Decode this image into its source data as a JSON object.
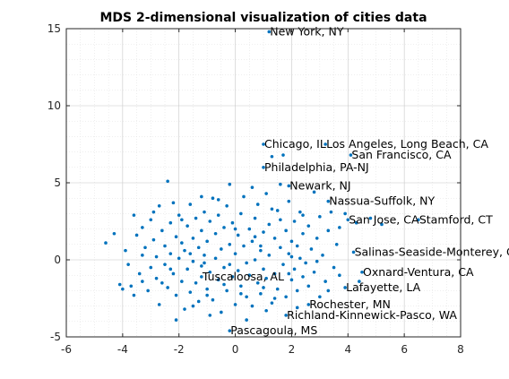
{
  "chart_data": {
    "type": "scatter",
    "title": "MDS 2-dimensional visualization of cities data",
    "xlabel": "",
    "ylabel": "",
    "xlim": [
      -6,
      8
    ],
    "ylim": [
      -5,
      15
    ],
    "xticks": [
      -6,
      -4,
      -2,
      0,
      2,
      4,
      6,
      8
    ],
    "yticks": [
      -5,
      0,
      5,
      10,
      15
    ],
    "xtick_labels": [
      "-6",
      "-4",
      "-2",
      "0",
      "2",
      "4",
      "6",
      "8"
    ],
    "ytick_labels": [
      "-5",
      "0",
      "5",
      "10",
      "15"
    ],
    "grid": true,
    "minor_grid": true,
    "point_color": "#0072BD",
    "labeled_points": [
      {
        "label": "New York, NY",
        "x": 1.2,
        "y": 14.8
      },
      {
        "label": "Chicago, IL",
        "x": 1.0,
        "y": 7.5
      },
      {
        "label": "Los Angeles, Long Beach, CA",
        "x": 3.2,
        "y": 7.5
      },
      {
        "label": "San Francisco, CA",
        "x": 4.1,
        "y": 6.8
      },
      {
        "label": "Philadelphia, PA-NJ",
        "x": 1.0,
        "y": 6.0
      },
      {
        "label": "Newark, NJ",
        "x": 1.9,
        "y": 4.8
      },
      {
        "label": "Nassua-Suffolk, NY",
        "x": 3.3,
        "y": 3.8
      },
      {
        "label": "San Jose, CA",
        "x": 4.0,
        "y": 2.6
      },
      {
        "label": "Stamford, CT",
        "x": 6.5,
        "y": 2.6
      },
      {
        "label": "Salinas-Seaside-Monterey, CA",
        "x": 4.2,
        "y": 0.5
      },
      {
        "label": "Oxnard-Ventura, CA",
        "x": 4.5,
        "y": -0.8
      },
      {
        "label": "Tuscaloosa, AL",
        "x": -1.2,
        "y": -1.1
      },
      {
        "label": "Lafayette, LA",
        "x": 3.9,
        "y": -1.8
      },
      {
        "label": "Rochester, MN",
        "x": 2.6,
        "y": -2.9
      },
      {
        "label": "Richland-Kinnewick-Pasco, WA",
        "x": 1.8,
        "y": -3.6
      },
      {
        "label": "Pascagoula, MS",
        "x": -0.2,
        "y": -4.6
      }
    ],
    "points": [
      {
        "x": -4.6,
        "y": 1.1
      },
      {
        "x": -4.3,
        "y": 1.7
      },
      {
        "x": -4.1,
        "y": -1.6
      },
      {
        "x": -4.0,
        "y": -1.9
      },
      {
        "x": -3.9,
        "y": 0.6
      },
      {
        "x": -3.8,
        "y": -0.3
      },
      {
        "x": -3.7,
        "y": -1.7
      },
      {
        "x": -3.6,
        "y": 2.9
      },
      {
        "x": -3.5,
        "y": 1.6
      },
      {
        "x": -3.4,
        "y": -0.9
      },
      {
        "x": -3.3,
        "y": 2.1
      },
      {
        "x": -3.3,
        "y": -1.4
      },
      {
        "x": -3.2,
        "y": 0.8
      },
      {
        "x": -3.1,
        "y": -2.0
      },
      {
        "x": -3.0,
        "y": 2.6
      },
      {
        "x": -3.0,
        "y": -0.5
      },
      {
        "x": -2.9,
        "y": 1.3
      },
      {
        "x": -2.8,
        "y": 0.2
      },
      {
        "x": -2.8,
        "y": -1.2
      },
      {
        "x": -2.7,
        "y": 3.5
      },
      {
        "x": -2.7,
        "y": -2.9
      },
      {
        "x": -2.6,
        "y": 1.9
      },
      {
        "x": -2.5,
        "y": -0.3
      },
      {
        "x": -2.5,
        "y": 0.9
      },
      {
        "x": -2.4,
        "y": 5.1
      },
      {
        "x": -2.4,
        "y": -1.8
      },
      {
        "x": -2.3,
        "y": 2.4
      },
      {
        "x": -2.3,
        "y": 0.4
      },
      {
        "x": -2.2,
        "y": -0.9
      },
      {
        "x": -2.2,
        "y": 3.7
      },
      {
        "x": -2.1,
        "y": 1.5
      },
      {
        "x": -2.1,
        "y": -2.3
      },
      {
        "x": -2.0,
        "y": 0.1
      },
      {
        "x": -2.0,
        "y": 2.9
      },
      {
        "x": -1.9,
        "y": -1.4
      },
      {
        "x": -1.9,
        "y": 1.1
      },
      {
        "x": -1.8,
        "y": -3.2
      },
      {
        "x": -1.8,
        "y": 0.6
      },
      {
        "x": -1.7,
        "y": 2.2
      },
      {
        "x": -1.7,
        "y": -0.6
      },
      {
        "x": -1.6,
        "y": 3.6
      },
      {
        "x": -1.6,
        "y": -2.1
      },
      {
        "x": -1.5,
        "y": 1.4
      },
      {
        "x": -1.5,
        "y": -0.1
      },
      {
        "x": -1.4,
        "y": 2.7
      },
      {
        "x": -1.4,
        "y": -1.5
      },
      {
        "x": -1.3,
        "y": 0.8
      },
      {
        "x": -1.3,
        "y": -2.7
      },
      {
        "x": -1.2,
        "y": 1.9
      },
      {
        "x": -1.2,
        "y": -0.4
      },
      {
        "x": -1.1,
        "y": 3.1
      },
      {
        "x": -1.1,
        "y": 0.3
      },
      {
        "x": -1.0,
        "y": -1.9
      },
      {
        "x": -1.0,
        "y": 1.2
      },
      {
        "x": -0.9,
        "y": 2.5
      },
      {
        "x": -0.9,
        "y": -0.8
      },
      {
        "x": -0.8,
        "y": 4.0
      },
      {
        "x": -0.8,
        "y": -2.6
      },
      {
        "x": -0.7,
        "y": 1.7
      },
      {
        "x": -0.7,
        "y": 0.1
      },
      {
        "x": -0.6,
        "y": -1.3
      },
      {
        "x": -0.6,
        "y": 2.9
      },
      {
        "x": -0.5,
        "y": 0.7
      },
      {
        "x": -0.5,
        "y": -3.4
      },
      {
        "x": -0.4,
        "y": 2.1
      },
      {
        "x": -0.4,
        "y": -0.5
      },
      {
        "x": -0.3,
        "y": 3.5
      },
      {
        "x": -0.3,
        "y": -2.0
      },
      {
        "x": -0.2,
        "y": 1.0
      },
      {
        "x": -0.2,
        "y": 4.9
      },
      {
        "x": -0.1,
        "y": -1.1
      },
      {
        "x": -0.1,
        "y": 2.4
      },
      {
        "x": 0.0,
        "y": 0.4
      },
      {
        "x": 0.0,
        "y": -2.9
      },
      {
        "x": 0.1,
        "y": 1.6
      },
      {
        "x": 0.1,
        "y": -0.7
      },
      {
        "x": 0.2,
        "y": 3.0
      },
      {
        "x": 0.2,
        "y": -1.7
      },
      {
        "x": 0.3,
        "y": 0.9
      },
      {
        "x": 0.3,
        "y": 4.1
      },
      {
        "x": 0.4,
        "y": -0.2
      },
      {
        "x": 0.4,
        "y": -2.4
      },
      {
        "x": 0.5,
        "y": 2.0
      },
      {
        "x": 0.5,
        "y": -1.0
      },
      {
        "x": 0.6,
        "y": 1.2
      },
      {
        "x": 0.6,
        "y": -3.0
      },
      {
        "x": 0.7,
        "y": 2.7
      },
      {
        "x": 0.7,
        "y": 0.0
      },
      {
        "x": 0.8,
        "y": -1.5
      },
      {
        "x": 0.8,
        "y": 3.6
      },
      {
        "x": 0.9,
        "y": 0.6
      },
      {
        "x": 0.9,
        "y": -2.2
      },
      {
        "x": 1.0,
        "y": 1.8
      },
      {
        "x": 1.0,
        "y": -0.6
      },
      {
        "x": 1.1,
        "y": 4.3
      },
      {
        "x": 1.1,
        "y": -1.2
      },
      {
        "x": 1.2,
        "y": 2.3
      },
      {
        "x": 1.2,
        "y": 0.3
      },
      {
        "x": 1.3,
        "y": -2.8
      },
      {
        "x": 1.3,
        "y": 6.7
      },
      {
        "x": 1.4,
        "y": 1.4
      },
      {
        "x": 1.4,
        "y": -0.9
      },
      {
        "x": 1.5,
        "y": 3.2
      },
      {
        "x": 1.5,
        "y": -1.9
      },
      {
        "x": 1.6,
        "y": 0.8
      },
      {
        "x": 1.6,
        "y": 2.6
      },
      {
        "x": 1.7,
        "y": -0.3
      },
      {
        "x": 1.7,
        "y": 6.8
      },
      {
        "x": 1.8,
        "y": 1.9
      },
      {
        "x": 1.8,
        "y": -2.4
      },
      {
        "x": 1.9,
        "y": 0.4
      },
      {
        "x": 1.9,
        "y": 3.8
      },
      {
        "x": 2.0,
        "y": -1.3
      },
      {
        "x": 2.0,
        "y": 1.2
      },
      {
        "x": 2.1,
        "y": 2.5
      },
      {
        "x": 2.1,
        "y": -0.6
      },
      {
        "x": 2.2,
        "y": 0.9
      },
      {
        "x": 2.2,
        "y": -2.0
      },
      {
        "x": 2.3,
        "y": 3.1
      },
      {
        "x": 2.3,
        "y": 0.1
      },
      {
        "x": 2.4,
        "y": -1.1
      },
      {
        "x": 2.4,
        "y": 1.7
      },
      {
        "x": 2.5,
        "y": -0.2
      },
      {
        "x": 2.6,
        "y": 2.2
      },
      {
        "x": 2.6,
        "y": -1.7
      },
      {
        "x": 2.7,
        "y": 0.7
      },
      {
        "x": 2.8,
        "y": 4.4
      },
      {
        "x": 2.8,
        "y": -0.8
      },
      {
        "x": 2.9,
        "y": 1.4
      },
      {
        "x": 3.0,
        "y": -2.4
      },
      {
        "x": 3.0,
        "y": 2.8
      },
      {
        "x": 3.1,
        "y": 0.3
      },
      {
        "x": 3.2,
        "y": -1.4
      },
      {
        "x": 3.3,
        "y": 1.9
      },
      {
        "x": 3.4,
        "y": 3.1
      },
      {
        "x": 3.5,
        "y": -0.5
      },
      {
        "x": 3.6,
        "y": 1.0
      },
      {
        "x": 3.7,
        "y": 2.1
      },
      {
        "x": 3.7,
        "y": -1.0
      },
      {
        "x": 3.9,
        "y": 3.0
      },
      {
        "x": 4.3,
        "y": 2.4
      },
      {
        "x": 4.4,
        "y": -1.4
      },
      {
        "x": 4.8,
        "y": 2.7
      },
      {
        "x": 5.2,
        "y": 2.3
      },
      {
        "x": -1.5,
        "y": -3.0
      },
      {
        "x": -0.9,
        "y": -3.6
      },
      {
        "x": 0.4,
        "y": -3.9
      },
      {
        "x": 1.1,
        "y": -3.3
      },
      {
        "x": -2.1,
        "y": -3.9
      },
      {
        "x": 2.2,
        "y": -3.1
      },
      {
        "x": -3.6,
        "y": -2.3
      },
      {
        "x": -2.9,
        "y": 3.1
      },
      {
        "x": -1.2,
        "y": 4.1
      },
      {
        "x": 0.6,
        "y": 4.7
      },
      {
        "x": 1.6,
        "y": 4.9
      },
      {
        "x": -0.6,
        "y": 3.9
      },
      {
        "x": -1.6,
        "y": 0.4
      },
      {
        "x": -0.2,
        "y": -0.3
      },
      {
        "x": 0.9,
        "y": 0.9
      },
      {
        "x": 1.9,
        "y": -0.9
      },
      {
        "x": 2.9,
        "y": -0.1
      },
      {
        "x": -2.6,
        "y": -1.5
      },
      {
        "x": -3.3,
        "y": 0.3
      },
      {
        "x": -1.9,
        "y": 2.6
      },
      {
        "x": 0.2,
        "y": -2.2
      },
      {
        "x": 1.4,
        "y": -2.5
      },
      {
        "x": 2.4,
        "y": 2.9
      },
      {
        "x": 3.3,
        "y": -2.0
      },
      {
        "x": -0.4,
        "y": -1.6
      },
      {
        "x": -1.0,
        "y": -2.3
      },
      {
        "x": 0.7,
        "y": 1.5
      },
      {
        "x": 1.3,
        "y": 3.3
      },
      {
        "x": -2.3,
        "y": -0.6
      },
      {
        "x": -1.1,
        "y": -0.2
      },
      {
        "x": 0.0,
        "y": 2.0
      },
      {
        "x": 1.0,
        "y": -1.8
      },
      {
        "x": 2.0,
        "y": 0.2
      }
    ]
  }
}
